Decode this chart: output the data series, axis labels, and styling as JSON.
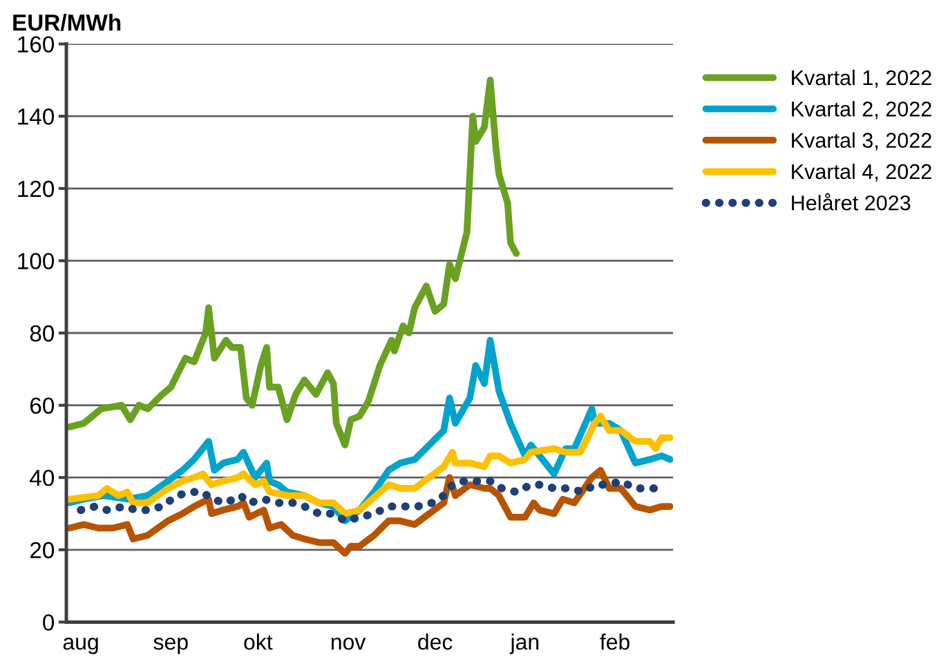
{
  "chart_data": {
    "type": "line",
    "ylabel": "EUR/MWh",
    "xlim": [
      "2021-07-27",
      "2022-02-21"
    ],
    "xticks": [
      {
        "value": "2021-08-01",
        "label": "aug"
      },
      {
        "value": "2021-09-01",
        "label": "sep"
      },
      {
        "value": "2021-10-01",
        "label": "okt"
      },
      {
        "value": "2021-11-01",
        "label": "nov"
      },
      {
        "value": "2021-12-01",
        "label": "dec"
      },
      {
        "value": "2022-01-01",
        "label": "jan"
      },
      {
        "value": "2022-02-01",
        "label": "feb"
      }
    ],
    "ylim": [
      0,
      160
    ],
    "yticks": [
      0,
      20,
      40,
      60,
      80,
      100,
      120,
      140,
      160
    ],
    "grid": "y",
    "legend": "right",
    "marker": "none",
    "line_style": "solid",
    "series": [
      {
        "name": "Kvartal 1, 2022",
        "color": "#6aa121",
        "x": [
          "2021-07-28",
          "2021-08-02",
          "2021-08-08",
          "2021-08-15",
          "2021-08-18",
          "2021-08-21",
          "2021-08-24",
          "2021-08-29",
          "2021-09-01",
          "2021-09-06",
          "2021-09-09",
          "2021-09-13",
          "2021-09-14",
          "2021-09-16",
          "2021-09-20",
          "2021-09-22",
          "2021-09-25",
          "2021-09-27",
          "2021-09-29",
          "2021-10-02",
          "2021-10-04",
          "2021-10-05",
          "2021-10-08",
          "2021-10-11",
          "2021-10-14",
          "2021-10-17",
          "2021-10-21",
          "2021-10-25",
          "2021-10-27",
          "2021-10-28",
          "2021-10-31",
          "2021-11-02",
          "2021-11-05",
          "2021-11-08",
          "2021-11-12",
          "2021-11-16",
          "2021-11-17",
          "2021-11-20",
          "2021-11-22",
          "2021-11-24",
          "2021-11-28",
          "2021-12-01",
          "2021-12-04",
          "2021-12-06",
          "2021-12-08",
          "2021-12-12",
          "2021-12-14",
          "2021-12-15",
          "2021-12-18",
          "2021-12-20",
          "2021-12-22",
          "2021-12-23",
          "2021-12-26",
          "2021-12-27",
          "2021-12-29"
        ],
        "values": [
          54,
          55,
          59,
          60,
          56,
          60,
          59,
          63,
          65,
          73,
          72,
          80,
          87,
          73,
          78,
          76,
          76,
          62,
          60,
          71,
          76,
          65,
          65,
          56,
          63,
          67,
          63,
          69,
          66,
          55,
          49,
          56,
          57,
          61,
          71,
          78,
          75,
          82,
          80,
          87,
          93,
          86,
          88,
          99,
          95,
          108,
          140,
          133,
          137,
          150,
          131,
          124,
          116,
          105,
          102
        ]
      },
      {
        "name": "Kvartal 2, 2022",
        "color": "#00a3cc",
        "x": [
          "2021-07-28",
          "2021-08-02",
          "2021-08-09",
          "2021-08-17",
          "2021-08-24",
          "2021-08-31",
          "2021-09-05",
          "2021-09-09",
          "2021-09-14",
          "2021-09-16",
          "2021-09-19",
          "2021-09-24",
          "2021-09-26",
          "2021-09-30",
          "2021-10-04",
          "2021-10-05",
          "2021-10-08",
          "2021-10-11",
          "2021-10-17",
          "2021-10-22",
          "2021-10-27",
          "2021-10-31",
          "2021-11-05",
          "2021-11-10",
          "2021-11-15",
          "2021-11-19",
          "2021-11-24",
          "2021-11-29",
          "2021-12-04",
          "2021-12-06",
          "2021-12-08",
          "2021-12-13",
          "2021-12-15",
          "2021-12-18",
          "2021-12-20",
          "2021-12-23",
          "2021-12-27",
          "2022-01-01",
          "2022-01-03",
          "2022-01-06",
          "2022-01-11",
          "2022-01-15",
          "2022-01-18",
          "2022-01-24",
          "2022-01-25",
          "2022-01-30",
          "2022-02-03",
          "2022-02-08",
          "2022-02-13",
          "2022-02-17",
          "2022-02-20"
        ],
        "values": [
          33,
          34,
          35,
          34,
          35,
          39,
          42,
          45,
          50,
          42,
          44,
          45,
          47,
          40,
          44,
          39,
          38,
          36,
          35,
          33,
          32,
          28,
          31,
          36,
          42,
          44,
          45,
          49,
          53,
          62,
          55,
          62,
          71,
          66,
          78,
          64,
          55,
          46,
          49,
          46,
          41,
          48,
          48,
          59,
          55,
          55,
          53,
          44,
          45,
          46,
          45
        ]
      },
      {
        "name": "Kvartal 3, 2022",
        "color": "#b85400",
        "x": [
          "2021-07-28",
          "2021-08-02",
          "2021-08-07",
          "2021-08-12",
          "2021-08-17",
          "2021-08-19",
          "2021-08-24",
          "2021-08-31",
          "2021-09-05",
          "2021-09-09",
          "2021-09-14",
          "2021-09-15",
          "2021-09-19",
          "2021-09-24",
          "2021-09-26",
          "2021-09-28",
          "2021-10-03",
          "2021-10-05",
          "2021-10-09",
          "2021-10-13",
          "2021-10-17",
          "2021-10-22",
          "2021-10-27",
          "2021-10-31",
          "2021-11-02",
          "2021-11-05",
          "2021-11-10",
          "2021-11-15",
          "2021-11-19",
          "2021-11-24",
          "2021-11-29",
          "2021-12-04",
          "2021-12-06",
          "2021-12-08",
          "2021-12-13",
          "2021-12-18",
          "2021-12-20",
          "2021-12-23",
          "2021-12-27",
          "2022-01-01",
          "2022-01-04",
          "2022-01-06",
          "2022-01-11",
          "2022-01-14",
          "2022-01-18",
          "2022-01-24",
          "2022-01-27",
          "2022-01-30",
          "2022-02-03",
          "2022-02-08",
          "2022-02-13",
          "2022-02-17",
          "2022-02-20"
        ],
        "values": [
          26,
          27,
          26,
          26,
          27,
          23,
          24,
          28,
          30,
          32,
          34,
          30,
          31,
          32,
          33,
          29,
          31,
          26,
          27,
          24,
          23,
          22,
          22,
          19,
          21,
          21,
          24,
          28,
          28,
          27,
          30,
          33,
          40,
          35,
          38,
          37,
          37,
          35,
          29,
          29,
          33,
          31,
          30,
          34,
          33,
          40,
          42,
          37,
          37,
          32,
          31,
          32,
          32
        ]
      },
      {
        "name": "Kvartal 4, 2022",
        "color": "#ffc000",
        "x": [
          "2021-07-28",
          "2021-08-07",
          "2021-08-10",
          "2021-08-14",
          "2021-08-17",
          "2021-08-19",
          "2021-08-24",
          "2021-08-31",
          "2021-09-05",
          "2021-09-09",
          "2021-09-12",
          "2021-09-15",
          "2021-09-19",
          "2021-09-24",
          "2021-09-26",
          "2021-09-30",
          "2021-10-03",
          "2021-10-05",
          "2021-10-11",
          "2021-10-17",
          "2021-10-22",
          "2021-10-27",
          "2021-10-31",
          "2021-11-05",
          "2021-11-15",
          "2021-11-19",
          "2021-11-24",
          "2021-11-29",
          "2021-12-04",
          "2021-12-07",
          "2021-12-08",
          "2021-12-13",
          "2021-12-18",
          "2021-12-20",
          "2021-12-23",
          "2021-12-27",
          "2022-01-01",
          "2022-01-03",
          "2022-01-11",
          "2022-01-15",
          "2022-01-20",
          "2022-01-25",
          "2022-01-27",
          "2022-01-30",
          "2022-02-03",
          "2022-02-08",
          "2022-02-13",
          "2022-02-15",
          "2022-02-17",
          "2022-02-20"
        ],
        "values": [
          34,
          35,
          37,
          35,
          36,
          33,
          33,
          37,
          39,
          40,
          41,
          38,
          39,
          40,
          41,
          38,
          39,
          36,
          35,
          35,
          33,
          33,
          30,
          31,
          38,
          37,
          37,
          40,
          43,
          47,
          44,
          44,
          43,
          46,
          46,
          44,
          45,
          47,
          48,
          47,
          47,
          55,
          57,
          53,
          53,
          50,
          50,
          48,
          51,
          51
        ]
      },
      {
        "name": "Helåret 2023",
        "color": "#1f3f77",
        "line_style": "dotted",
        "x": [
          "2021-08-01",
          "2021-08-06",
          "2021-08-10",
          "2021-08-16",
          "2021-08-20",
          "2021-08-24",
          "2021-08-29",
          "2021-09-03",
          "2021-09-08",
          "2021-09-12",
          "2021-09-15",
          "2021-09-20",
          "2021-09-25",
          "2021-09-28",
          "2021-10-03",
          "2021-10-08",
          "2021-10-13",
          "2021-10-17",
          "2021-10-22",
          "2021-10-27",
          "2021-10-31",
          "2021-11-05",
          "2021-11-10",
          "2021-11-15",
          "2021-11-19",
          "2021-11-25",
          "2021-11-30",
          "2021-12-04",
          "2021-12-07",
          "2021-12-11",
          "2021-12-15",
          "2021-12-20",
          "2021-12-24",
          "2021-12-29",
          "2022-01-03",
          "2022-01-07",
          "2022-01-11",
          "2022-01-16",
          "2022-01-21",
          "2022-01-25",
          "2022-01-30",
          "2022-02-03",
          "2022-02-08",
          "2022-02-13",
          "2022-02-17"
        ],
        "values": [
          31,
          32,
          31,
          32,
          31,
          31,
          32,
          35,
          36,
          36,
          34,
          33,
          35,
          33,
          34,
          33,
          33,
          32,
          30,
          30,
          28,
          29,
          30,
          32,
          32,
          32,
          33,
          35,
          38,
          39,
          39,
          39,
          37,
          36,
          38,
          38,
          37,
          37,
          36,
          38,
          38,
          39,
          37,
          37,
          37
        ]
      }
    ]
  }
}
